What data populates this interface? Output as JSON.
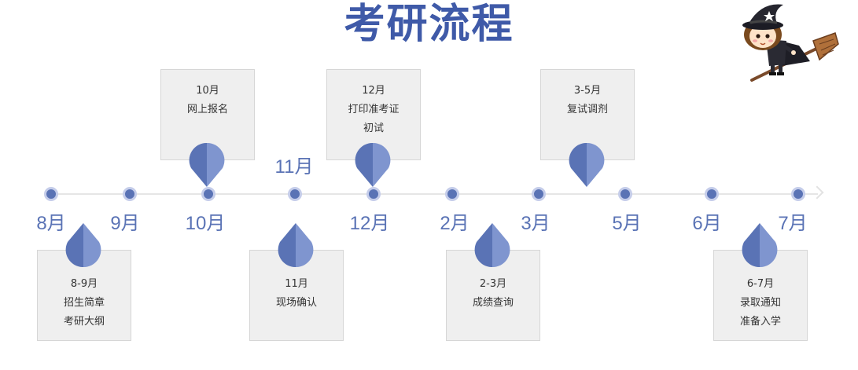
{
  "title": "考研流程",
  "colors": {
    "title": "#3f5aa8",
    "accent": "#5a73b5",
    "accent_light": "#7f95cf",
    "dot_ring": "#c5cdea",
    "box_bg": "#efefef"
  },
  "months_below": [
    "8月",
    "9月",
    "10月",
    "12月",
    "2月",
    "3月",
    "5月",
    "6月",
    "7月"
  ],
  "month_above": "11月",
  "top_boxes": [
    {
      "lines": [
        "10月",
        "网上报名"
      ]
    },
    {
      "lines": [
        "12月",
        "打印准考证",
        "初试"
      ]
    },
    {
      "lines": [
        "3-5月",
        "复试调剂"
      ]
    }
  ],
  "bottom_boxes": [
    {
      "lines": [
        "8-9月",
        "招生简章",
        "考研大纲"
      ]
    },
    {
      "lines": [
        "11月",
        "现场确认"
      ]
    },
    {
      "lines": [
        "2-3月",
        "成绩查询"
      ]
    },
    {
      "lines": [
        "6-7月",
        "录取通知",
        "准备入学"
      ]
    }
  ],
  "mascot_icon": "witch-on-broom-icon"
}
